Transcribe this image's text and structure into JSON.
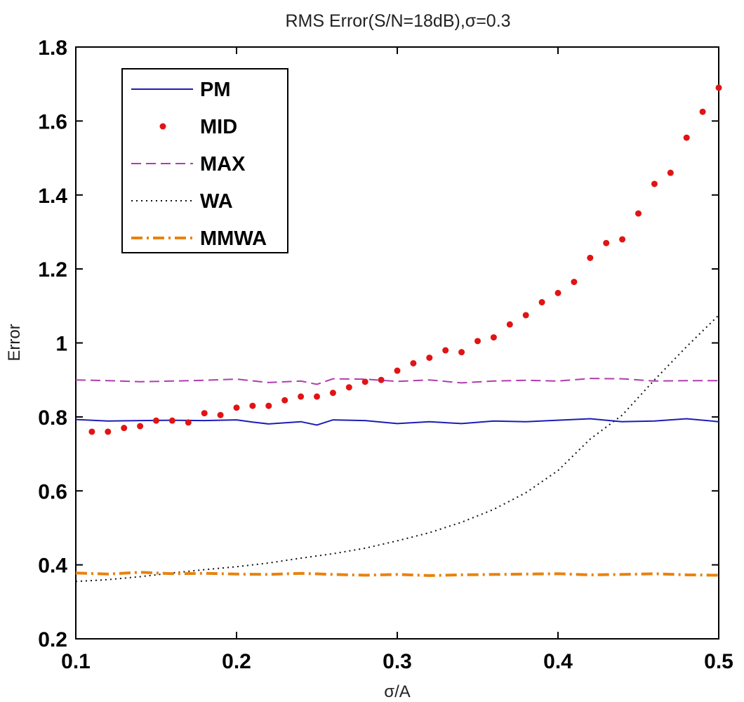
{
  "chart_data": {
    "type": "line",
    "title": "RMS Error(S/N=18dB),σ=0.3",
    "xlabel": "σ/A",
    "ylabel": "Error",
    "xlim": [
      0.1,
      0.5
    ],
    "ylim": [
      0.2,
      1.8
    ],
    "xticks": [
      0.1,
      0.2,
      0.3,
      0.4,
      0.5
    ],
    "xtick_labels": [
      "0.1",
      "0.2",
      "0.3",
      "0.4",
      "0.5"
    ],
    "yticks": [
      0.2,
      0.4,
      0.6,
      0.8,
      1.0,
      1.2,
      1.4,
      1.6,
      1.8
    ],
    "ytick_labels": [
      "0.2",
      "0.4",
      "0.6",
      "0.8",
      "1",
      "1.2",
      "1.4",
      "1.6",
      "1.8"
    ],
    "grid": false,
    "legend_position": "top-left",
    "series": [
      {
        "name": "PM",
        "style": "solid",
        "color": "#1c1cb8",
        "x": [
          0.1,
          0.12,
          0.14,
          0.16,
          0.18,
          0.2,
          0.21,
          0.22,
          0.24,
          0.25,
          0.26,
          0.28,
          0.3,
          0.32,
          0.34,
          0.36,
          0.38,
          0.4,
          0.42,
          0.44,
          0.46,
          0.48,
          0.5
        ],
        "y": [
          0.793,
          0.789,
          0.79,
          0.791,
          0.79,
          0.792,
          0.786,
          0.781,
          0.787,
          0.778,
          0.792,
          0.79,
          0.782,
          0.787,
          0.782,
          0.789,
          0.787,
          0.791,
          0.795,
          0.787,
          0.789,
          0.795,
          0.787
        ]
      },
      {
        "name": "MID",
        "style": "markers",
        "color": "#e01414",
        "x": [
          0.11,
          0.12,
          0.13,
          0.14,
          0.15,
          0.16,
          0.17,
          0.18,
          0.19,
          0.2,
          0.21,
          0.22,
          0.23,
          0.24,
          0.25,
          0.26,
          0.27,
          0.28,
          0.29,
          0.3,
          0.31,
          0.32,
          0.33,
          0.34,
          0.35,
          0.36,
          0.37,
          0.38,
          0.39,
          0.4,
          0.41,
          0.42,
          0.43,
          0.44,
          0.45,
          0.46,
          0.47,
          0.48,
          0.49,
          0.5
        ],
        "y": [
          0.76,
          0.76,
          0.77,
          0.775,
          0.79,
          0.79,
          0.785,
          0.81,
          0.805,
          0.825,
          0.83,
          0.83,
          0.845,
          0.855,
          0.855,
          0.865,
          0.88,
          0.895,
          0.9,
          0.925,
          0.945,
          0.96,
          0.98,
          0.975,
          1.005,
          1.015,
          1.05,
          1.075,
          1.11,
          1.135,
          1.165,
          1.23,
          1.27,
          1.28,
          1.35,
          1.43,
          1.46,
          1.555,
          1.625,
          1.69
        ]
      },
      {
        "name": "MAX",
        "style": "dashed",
        "color": "#b03cb0",
        "x": [
          0.1,
          0.12,
          0.14,
          0.16,
          0.18,
          0.2,
          0.22,
          0.24,
          0.25,
          0.26,
          0.28,
          0.3,
          0.32,
          0.34,
          0.36,
          0.38,
          0.4,
          0.42,
          0.44,
          0.46,
          0.48,
          0.5
        ],
        "y": [
          0.9,
          0.898,
          0.895,
          0.897,
          0.899,
          0.902,
          0.893,
          0.897,
          0.888,
          0.903,
          0.902,
          0.896,
          0.9,
          0.892,
          0.897,
          0.899,
          0.897,
          0.904,
          0.903,
          0.897,
          0.898,
          0.898
        ]
      },
      {
        "name": "WA",
        "style": "dotted",
        "color": "#111111",
        "x": [
          0.1,
          0.12,
          0.14,
          0.16,
          0.18,
          0.2,
          0.22,
          0.24,
          0.26,
          0.28,
          0.3,
          0.32,
          0.34,
          0.36,
          0.38,
          0.4,
          0.42,
          0.44,
          0.46,
          0.48,
          0.5
        ],
        "y": [
          0.355,
          0.36,
          0.368,
          0.378,
          0.387,
          0.395,
          0.405,
          0.418,
          0.43,
          0.445,
          0.465,
          0.487,
          0.515,
          0.55,
          0.595,
          0.655,
          0.74,
          0.805,
          0.9,
          0.99,
          1.075
        ]
      },
      {
        "name": "MMWA",
        "style": "dashdot",
        "color": "#e8820e",
        "x": [
          0.1,
          0.12,
          0.14,
          0.16,
          0.18,
          0.2,
          0.22,
          0.24,
          0.26,
          0.28,
          0.3,
          0.32,
          0.34,
          0.36,
          0.38,
          0.4,
          0.42,
          0.44,
          0.46,
          0.48,
          0.5
        ],
        "y": [
          0.378,
          0.375,
          0.38,
          0.376,
          0.377,
          0.375,
          0.374,
          0.377,
          0.374,
          0.372,
          0.374,
          0.371,
          0.373,
          0.374,
          0.375,
          0.376,
          0.373,
          0.374,
          0.376,
          0.373,
          0.372
        ]
      }
    ]
  }
}
